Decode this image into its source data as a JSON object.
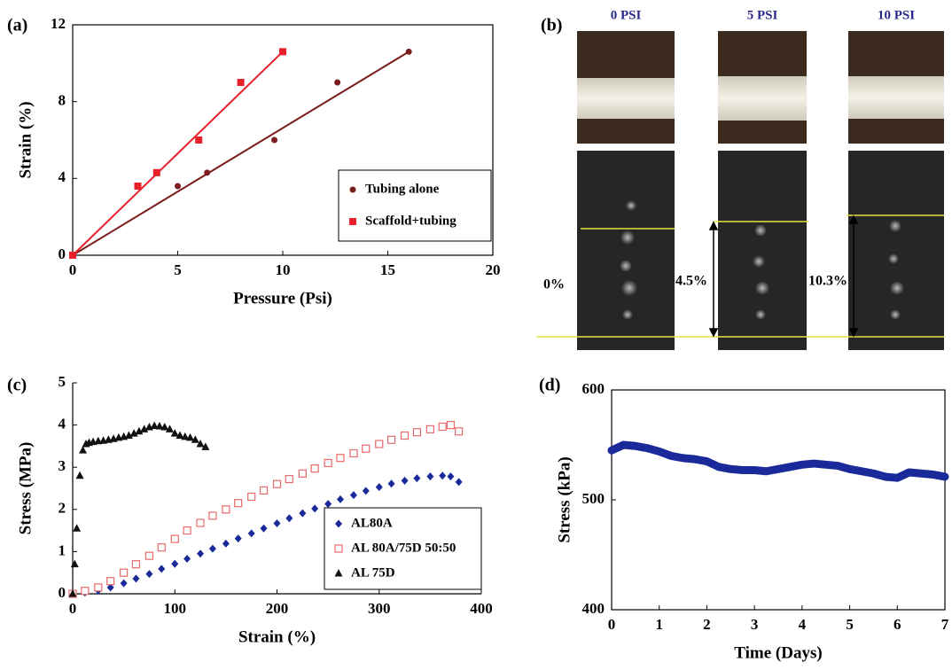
{
  "chart_data": [
    {
      "type": "scatter",
      "label": "(a)",
      "xlabel": "Pressure (Psi)",
      "ylabel": "Strain (%)",
      "xlim": [
        0,
        20
      ],
      "xticks": [
        0,
        5,
        10,
        15,
        20
      ],
      "ylim": [
        0,
        12
      ],
      "yticks": [
        0,
        4,
        8,
        12
      ],
      "legend": "lower right",
      "fit_lines": true,
      "series": [
        {
          "name": "Tubing alone",
          "color": "#7a1c1c",
          "marker": "circle",
          "x": [
            0,
            5,
            6.4,
            9.6,
            12.6,
            16
          ],
          "values": [
            0,
            3.6,
            4.3,
            6,
            9,
            10.6
          ]
        },
        {
          "name": "Scaffold+tubing",
          "color": "#e8202a",
          "marker": "square",
          "x": [
            0,
            3.1,
            4,
            6,
            8,
            10
          ],
          "values": [
            0,
            3.6,
            4.3,
            6,
            9,
            10.6
          ]
        }
      ]
    },
    {
      "type": "scatter",
      "label": "(c)",
      "xlabel": "Strain (%)",
      "ylabel": "Stress (MPa)",
      "xlim": [
        0,
        400
      ],
      "xticks": [
        0,
        100,
        200,
        300,
        400
      ],
      "ylim": [
        0,
        5
      ],
      "yticks": [
        0,
        1,
        2,
        3,
        4,
        5
      ],
      "legend": "lower right",
      "fit_lines": false,
      "series": [
        {
          "name": "AL80A",
          "color": "#1a2a9a",
          "marker": "diamond",
          "x": [
            0,
            12,
            25,
            37,
            50,
            62,
            75,
            87,
            100,
            112,
            125,
            137,
            150,
            162,
            175,
            187,
            200,
            212,
            225,
            237,
            250,
            262,
            275,
            287,
            300,
            312,
            325,
            337,
            350,
            362,
            370,
            378
          ],
          "values": [
            0,
            0.03,
            0.08,
            0.15,
            0.25,
            0.36,
            0.47,
            0.59,
            0.71,
            0.83,
            0.95,
            1.07,
            1.19,
            1.31,
            1.43,
            1.55,
            1.67,
            1.79,
            1.91,
            2.02,
            2.13,
            2.24,
            2.34,
            2.44,
            2.53,
            2.61,
            2.68,
            2.74,
            2.78,
            2.8,
            2.78,
            2.65
          ]
        },
        {
          "name": "AL 80A/75D 50:50",
          "color": "#e86a6a",
          "marker": "square-open",
          "x": [
            0,
            12,
            25,
            37,
            50,
            62,
            75,
            87,
            100,
            112,
            125,
            137,
            150,
            162,
            175,
            187,
            200,
            212,
            225,
            237,
            250,
            262,
            275,
            287,
            300,
            312,
            325,
            337,
            350,
            362,
            370,
            378
          ],
          "values": [
            0,
            0.07,
            0.15,
            0.3,
            0.5,
            0.7,
            0.9,
            1.1,
            1.3,
            1.5,
            1.68,
            1.85,
            2,
            2.15,
            2.3,
            2.45,
            2.6,
            2.72,
            2.85,
            2.97,
            3.1,
            3.22,
            3.33,
            3.44,
            3.55,
            3.65,
            3.75,
            3.83,
            3.9,
            3.96,
            4,
            3.85
          ]
        },
        {
          "name": "AL 75D",
          "color": "#111111",
          "marker": "triangle",
          "x": [
            0,
            2,
            4,
            7,
            10,
            13,
            16,
            20,
            25,
            30,
            35,
            40,
            45,
            50,
            55,
            60,
            65,
            70,
            75,
            80,
            85,
            90,
            95,
            100,
            105,
            110,
            115,
            120,
            125,
            130
          ],
          "values": [
            0,
            0.7,
            1.55,
            2.8,
            3.4,
            3.55,
            3.58,
            3.6,
            3.62,
            3.63,
            3.65,
            3.67,
            3.7,
            3.72,
            3.75,
            3.8,
            3.85,
            3.9,
            3.95,
            3.98,
            3.97,
            3.95,
            3.9,
            3.8,
            3.75,
            3.72,
            3.7,
            3.65,
            3.55,
            3.48
          ]
        }
      ]
    },
    {
      "type": "line",
      "label": "(d)",
      "xlabel": "Time (Days)",
      "ylabel": "Stress (kPa)",
      "xlim": [
        0,
        7
      ],
      "xticks": [
        0,
        1,
        2,
        3,
        4,
        5,
        6,
        7
      ],
      "ylim": [
        400,
        600
      ],
      "yticks": [
        400,
        500,
        600
      ],
      "color": "#1a2a9a",
      "x": [
        0,
        0.25,
        0.5,
        0.75,
        1,
        1.25,
        1.5,
        1.75,
        2,
        2.25,
        2.5,
        2.75,
        3,
        3.25,
        3.5,
        3.75,
        4,
        4.25,
        4.5,
        4.75,
        5,
        5.25,
        5.5,
        5.75,
        6,
        6.25,
        6.5,
        6.75,
        7
      ],
      "values": [
        545,
        550,
        549,
        547,
        544,
        540,
        538,
        537,
        535,
        530,
        528,
        527,
        527,
        526,
        528,
        530,
        532,
        533,
        532,
        531,
        528,
        526,
        524,
        521,
        520,
        525,
        524,
        523,
        521
      ]
    }
  ],
  "image_panel": {
    "label": "(b)",
    "columns": [
      "0 PSI",
      "5 PSI",
      "10 PSI"
    ],
    "strains": [
      "0%",
      "4.5%",
      "10.3%"
    ]
  }
}
